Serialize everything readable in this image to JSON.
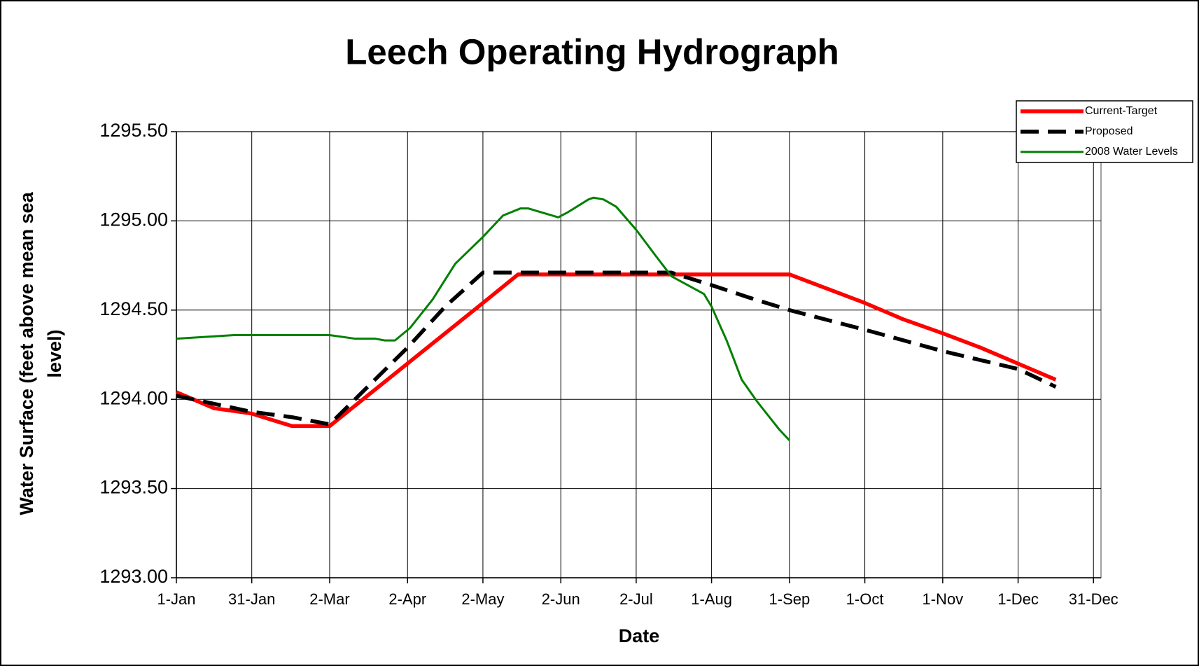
{
  "chart_data": {
    "type": "line",
    "title": "Leech Operating Hydrograph",
    "x_label": "Date",
    "y_label": [
      "Water Surface (feet above mean sea",
      "level)"
    ],
    "xlim": [
      0,
      368
    ],
    "xticks": [
      {
        "value": 0,
        "label": "1-Jan"
      },
      {
        "value": 30,
        "label": "31-Jan"
      },
      {
        "value": 61,
        "label": "2-Mar"
      },
      {
        "value": 92,
        "label": "2-Apr"
      },
      {
        "value": 122,
        "label": "2-May"
      },
      {
        "value": 153,
        "label": "2-Jun"
      },
      {
        "value": 183,
        "label": "2-Jul"
      },
      {
        "value": 213,
        "label": "1-Aug"
      },
      {
        "value": 244,
        "label": "1-Sep"
      },
      {
        "value": 274,
        "label": "1-Oct"
      },
      {
        "value": 305,
        "label": "1-Nov"
      },
      {
        "value": 335,
        "label": "1-Dec"
      },
      {
        "value": 365,
        "label": "31-Dec"
      }
    ],
    "ylim": [
      1293.0,
      1295.5
    ],
    "yticks": [
      {
        "value": 1293.0,
        "label": "1293.00"
      },
      {
        "value": 1293.5,
        "label": "1293.50"
      },
      {
        "value": 1294.0,
        "label": "1294.00"
      },
      {
        "value": 1294.5,
        "label": "1294.50"
      },
      {
        "value": 1295.0,
        "label": "1295.00"
      },
      {
        "value": 1295.5,
        "label": "1295.50"
      }
    ],
    "grid": true,
    "legend": "top-right",
    "series": [
      {
        "name": "Current-Target",
        "color": "#ff0000",
        "style": "solid",
        "x": [
          0,
          15,
          30,
          46,
          61,
          122,
          136,
          244,
          259,
          274,
          289,
          305,
          320,
          335,
          350
        ],
        "values": [
          1294.04,
          1293.95,
          1293.92,
          1293.85,
          1293.85,
          1294.54,
          1294.7,
          1294.7,
          1294.62,
          1294.54,
          1294.45,
          1294.37,
          1294.29,
          1294.2,
          1294.11
        ]
      },
      {
        "name": "Proposed",
        "color": "#000000",
        "style": "dashed",
        "x": [
          0,
          30,
          46,
          61,
          92,
          107,
          122,
          197,
          213,
          228,
          244,
          274,
          305,
          335,
          350
        ],
        "values": [
          1294.02,
          1293.93,
          1293.9,
          1293.86,
          1294.29,
          1294.52,
          1294.71,
          1294.71,
          1294.64,
          1294.57,
          1294.5,
          1294.39,
          1294.27,
          1294.17,
          1294.07
        ]
      },
      {
        "name": "2008 Water Levels",
        "color": "#008000",
        "style": "thin",
        "x": [
          0,
          23,
          61,
          71,
          79,
          83,
          87,
          93,
          102,
          111,
          122,
          130,
          137,
          140,
          152,
          156,
          164,
          166,
          170,
          175,
          183,
          191,
          197,
          210,
          213,
          219,
          225,
          231,
          240,
          244
        ],
        "values": [
          1294.34,
          1294.36,
          1294.36,
          1294.34,
          1294.34,
          1294.33,
          1294.33,
          1294.4,
          1294.56,
          1294.76,
          1294.91,
          1295.03,
          1295.07,
          1295.07,
          1295.02,
          1295.05,
          1295.12,
          1295.13,
          1295.12,
          1295.08,
          1294.95,
          1294.8,
          1294.69,
          1294.59,
          1294.52,
          1294.33,
          1294.11,
          1293.99,
          1293.83,
          1293.77
        ]
      }
    ]
  }
}
